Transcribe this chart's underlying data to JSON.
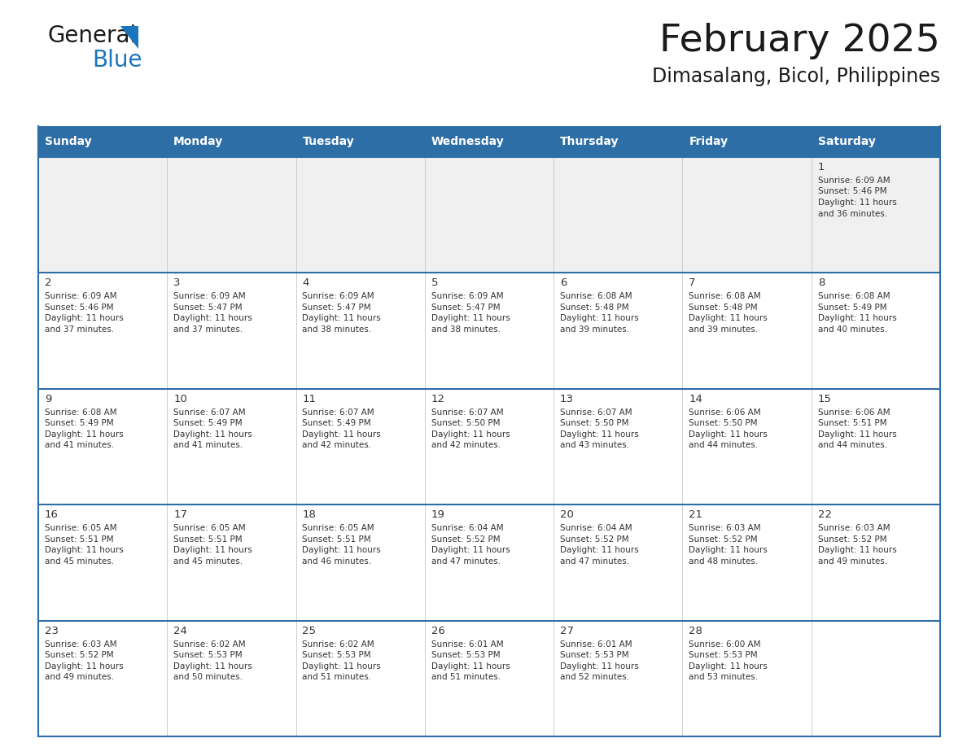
{
  "title": "February 2025",
  "subtitle": "Dimasalang, Bicol, Philippines",
  "header_color": "#2E6EA6",
  "header_text_color": "#FFFFFF",
  "day_names": [
    "Sunday",
    "Monday",
    "Tuesday",
    "Wednesday",
    "Thursday",
    "Friday",
    "Saturday"
  ],
  "background_color": "#FFFFFF",
  "alt_row_color": "#F0F0F0",
  "border_color": "#2E6EA6",
  "text_color": "#333333",
  "days": [
    {
      "day": 1,
      "col": 6,
      "row": 0,
      "sunrise": "6:09 AM",
      "sunset": "5:46 PM",
      "daylight": "11 hours and 36 minutes."
    },
    {
      "day": 2,
      "col": 0,
      "row": 1,
      "sunrise": "6:09 AM",
      "sunset": "5:46 PM",
      "daylight": "11 hours and 37 minutes."
    },
    {
      "day": 3,
      "col": 1,
      "row": 1,
      "sunrise": "6:09 AM",
      "sunset": "5:47 PM",
      "daylight": "11 hours and 37 minutes."
    },
    {
      "day": 4,
      "col": 2,
      "row": 1,
      "sunrise": "6:09 AM",
      "sunset": "5:47 PM",
      "daylight": "11 hours and 38 minutes."
    },
    {
      "day": 5,
      "col": 3,
      "row": 1,
      "sunrise": "6:09 AM",
      "sunset": "5:47 PM",
      "daylight": "11 hours and 38 minutes."
    },
    {
      "day": 6,
      "col": 4,
      "row": 1,
      "sunrise": "6:08 AM",
      "sunset": "5:48 PM",
      "daylight": "11 hours and 39 minutes."
    },
    {
      "day": 7,
      "col": 5,
      "row": 1,
      "sunrise": "6:08 AM",
      "sunset": "5:48 PM",
      "daylight": "11 hours and 39 minutes."
    },
    {
      "day": 8,
      "col": 6,
      "row": 1,
      "sunrise": "6:08 AM",
      "sunset": "5:49 PM",
      "daylight": "11 hours and 40 minutes."
    },
    {
      "day": 9,
      "col": 0,
      "row": 2,
      "sunrise": "6:08 AM",
      "sunset": "5:49 PM",
      "daylight": "11 hours and 41 minutes."
    },
    {
      "day": 10,
      "col": 1,
      "row": 2,
      "sunrise": "6:07 AM",
      "sunset": "5:49 PM",
      "daylight": "11 hours and 41 minutes."
    },
    {
      "day": 11,
      "col": 2,
      "row": 2,
      "sunrise": "6:07 AM",
      "sunset": "5:49 PM",
      "daylight": "11 hours and 42 minutes."
    },
    {
      "day": 12,
      "col": 3,
      "row": 2,
      "sunrise": "6:07 AM",
      "sunset": "5:50 PM",
      "daylight": "11 hours and 42 minutes."
    },
    {
      "day": 13,
      "col": 4,
      "row": 2,
      "sunrise": "6:07 AM",
      "sunset": "5:50 PM",
      "daylight": "11 hours and 43 minutes."
    },
    {
      "day": 14,
      "col": 5,
      "row": 2,
      "sunrise": "6:06 AM",
      "sunset": "5:50 PM",
      "daylight": "11 hours and 44 minutes."
    },
    {
      "day": 15,
      "col": 6,
      "row": 2,
      "sunrise": "6:06 AM",
      "sunset": "5:51 PM",
      "daylight": "11 hours and 44 minutes."
    },
    {
      "day": 16,
      "col": 0,
      "row": 3,
      "sunrise": "6:05 AM",
      "sunset": "5:51 PM",
      "daylight": "11 hours and 45 minutes."
    },
    {
      "day": 17,
      "col": 1,
      "row": 3,
      "sunrise": "6:05 AM",
      "sunset": "5:51 PM",
      "daylight": "11 hours and 45 minutes."
    },
    {
      "day": 18,
      "col": 2,
      "row": 3,
      "sunrise": "6:05 AM",
      "sunset": "5:51 PM",
      "daylight": "11 hours and 46 minutes."
    },
    {
      "day": 19,
      "col": 3,
      "row": 3,
      "sunrise": "6:04 AM",
      "sunset": "5:52 PM",
      "daylight": "11 hours and 47 minutes."
    },
    {
      "day": 20,
      "col": 4,
      "row": 3,
      "sunrise": "6:04 AM",
      "sunset": "5:52 PM",
      "daylight": "11 hours and 47 minutes."
    },
    {
      "day": 21,
      "col": 5,
      "row": 3,
      "sunrise": "6:03 AM",
      "sunset": "5:52 PM",
      "daylight": "11 hours and 48 minutes."
    },
    {
      "day": 22,
      "col": 6,
      "row": 3,
      "sunrise": "6:03 AM",
      "sunset": "5:52 PM",
      "daylight": "11 hours and 49 minutes."
    },
    {
      "day": 23,
      "col": 0,
      "row": 4,
      "sunrise": "6:03 AM",
      "sunset": "5:52 PM",
      "daylight": "11 hours and 49 minutes."
    },
    {
      "day": 24,
      "col": 1,
      "row": 4,
      "sunrise": "6:02 AM",
      "sunset": "5:53 PM",
      "daylight": "11 hours and 50 minutes."
    },
    {
      "day": 25,
      "col": 2,
      "row": 4,
      "sunrise": "6:02 AM",
      "sunset": "5:53 PM",
      "daylight": "11 hours and 51 minutes."
    },
    {
      "day": 26,
      "col": 3,
      "row": 4,
      "sunrise": "6:01 AM",
      "sunset": "5:53 PM",
      "daylight": "11 hours and 51 minutes."
    },
    {
      "day": 27,
      "col": 4,
      "row": 4,
      "sunrise": "6:01 AM",
      "sunset": "5:53 PM",
      "daylight": "11 hours and 52 minutes."
    },
    {
      "day": 28,
      "col": 5,
      "row": 4,
      "sunrise": "6:00 AM",
      "sunset": "5:53 PM",
      "daylight": "11 hours and 53 minutes."
    }
  ],
  "num_rows": 5,
  "logo_color_general": "#1a1a1a",
  "logo_color_blue": "#1a75bc",
  "logo_triangle_color": "#1a75bc"
}
